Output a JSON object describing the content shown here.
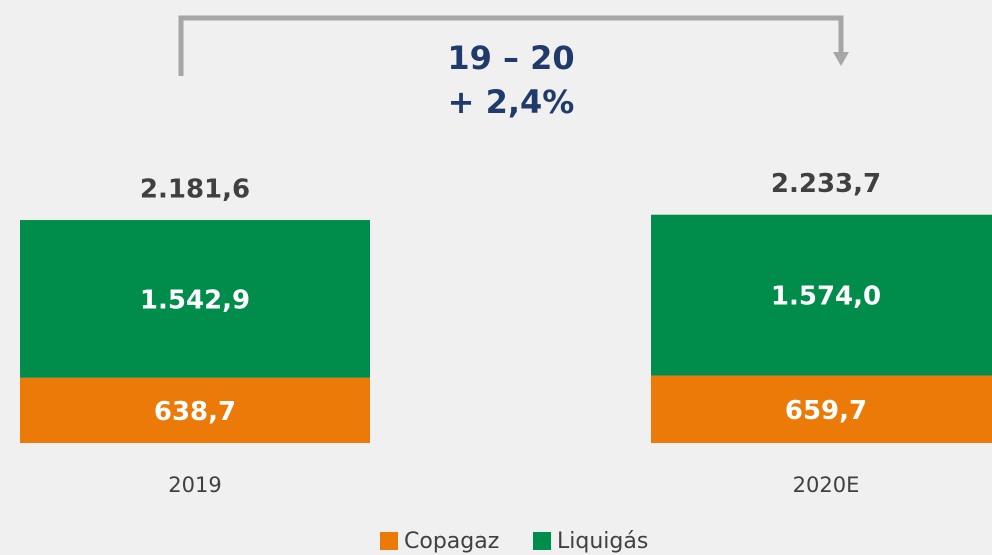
{
  "chart_data": {
    "type": "stacked-bar",
    "annotations": [
      "19 – 20",
      "+ 2,4%"
    ],
    "categories": [
      "2019",
      "2020E"
    ],
    "series": [
      {
        "name": "Copagaz",
        "color": "#ec7a08",
        "values": [
          638.7,
          659.7
        ],
        "value_labels": [
          "638,7",
          "659,7"
        ]
      },
      {
        "name": "Liquigás",
        "color": "#008c4a",
        "values": [
          1542.9,
          1574.0
        ],
        "value_labels": [
          "1.542,9",
          "1.574,0"
        ]
      }
    ],
    "totals": [
      2181.6,
      2233.7
    ],
    "total_labels": [
      "2.181,6",
      "2.233,7"
    ]
  }
}
